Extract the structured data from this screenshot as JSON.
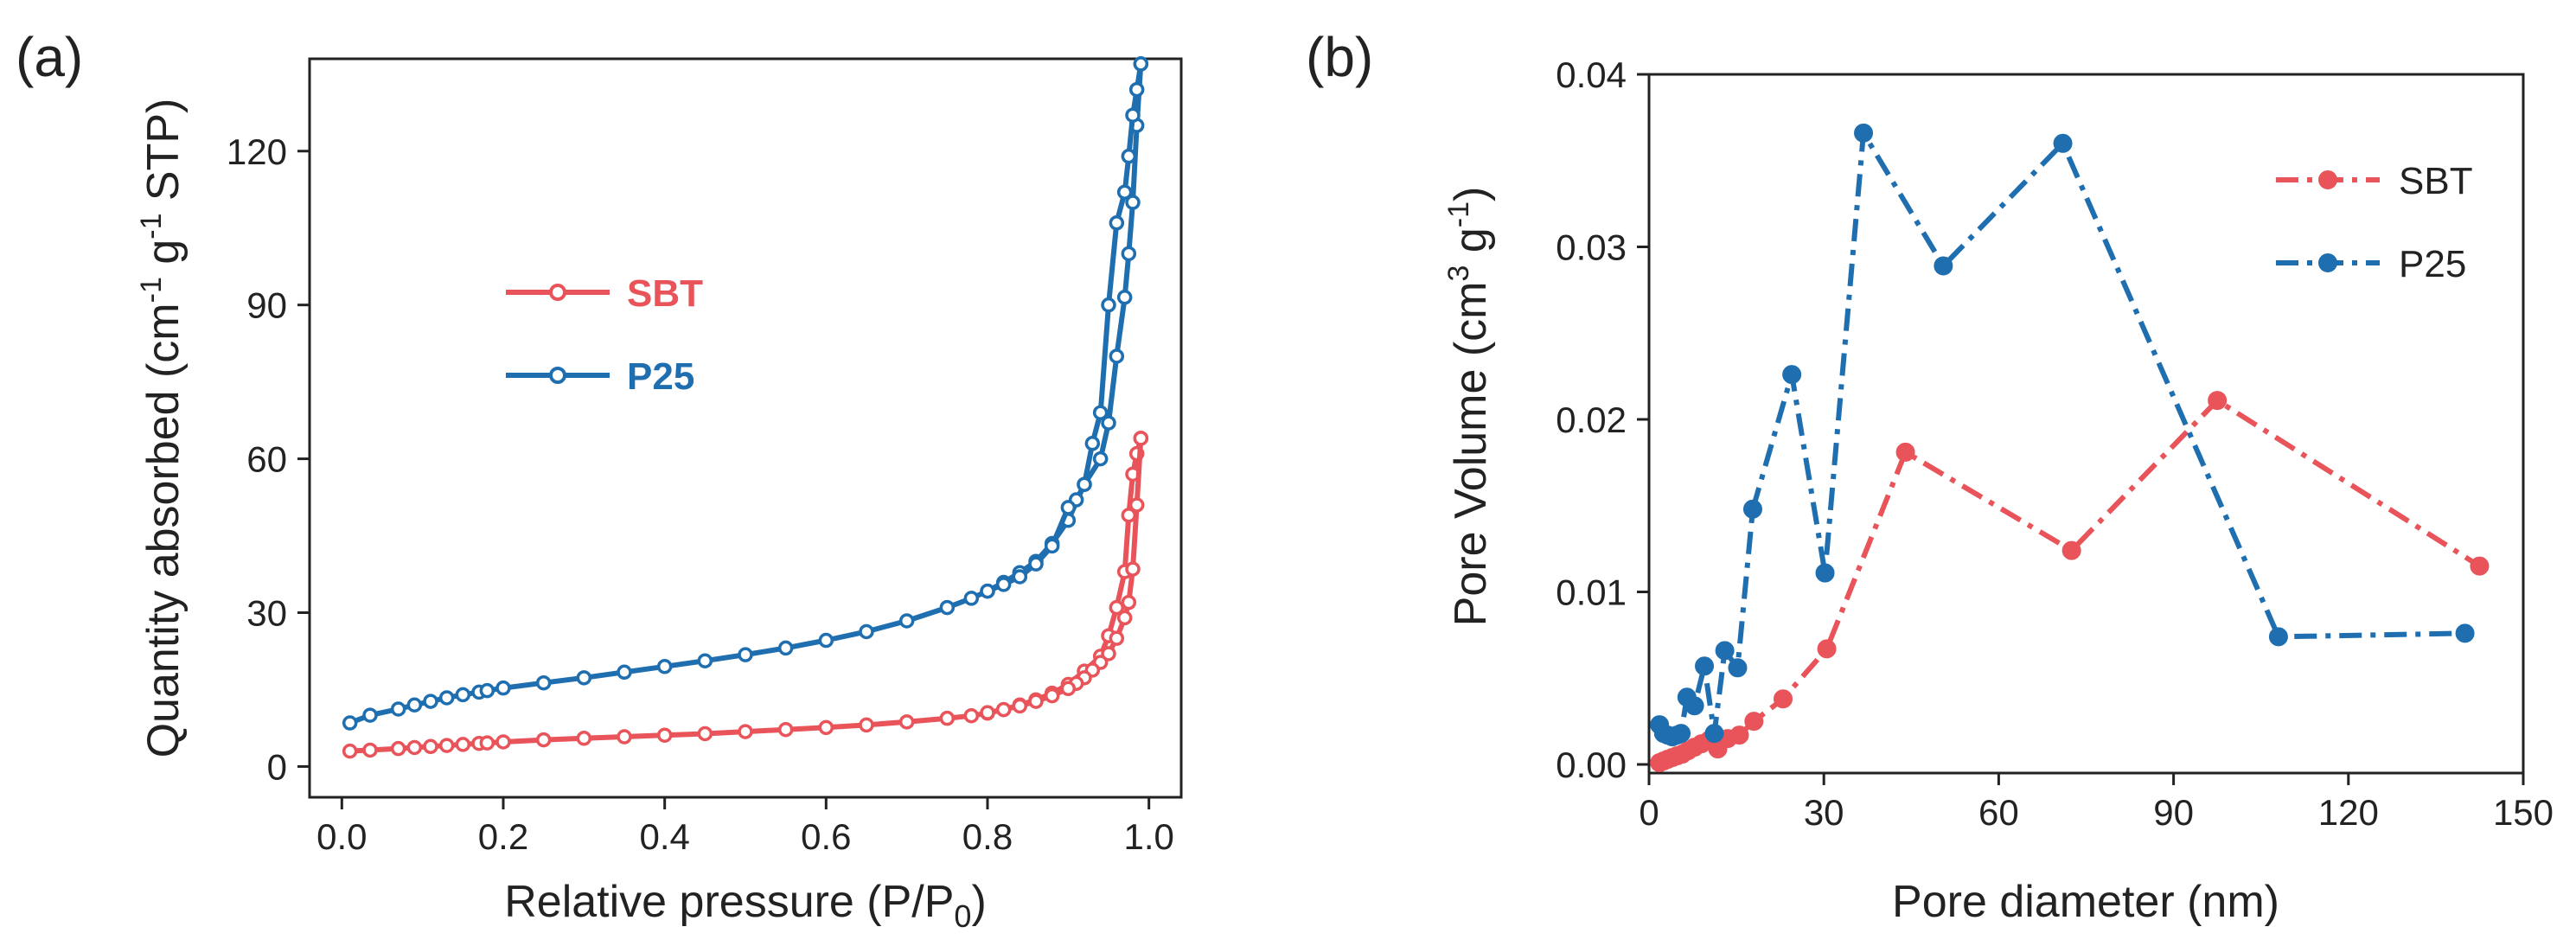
{
  "chart_data": [
    {
      "type": "line",
      "panel_label": "(a)",
      "title": "",
      "xlabel_main": "Relative pressure (P/P",
      "xlabel_sub": "0",
      "xlabel_end": ")",
      "ylabel_parts": [
        "Quantity absorbed (cm",
        "-1",
        " g",
        "-1",
        " STP)"
      ],
      "xlim": [
        -0.04,
        1.04
      ],
      "ylim": [
        -6,
        138
      ],
      "xticks": [
        0.0,
        0.2,
        0.4,
        0.6,
        0.8,
        1.0
      ],
      "xtick_labels": [
        "0.0",
        "0.2",
        "0.4",
        "0.6",
        "0.8",
        "1.0"
      ],
      "yticks": [
        0,
        30,
        60,
        90,
        120
      ],
      "ytick_labels": [
        "0",
        "30",
        "60",
        "90",
        "120"
      ],
      "legend_position": "center-left",
      "series": [
        {
          "name": "SBT",
          "color": "#e8545a",
          "adsorption": {
            "x": [
              0.01,
              0.035,
              0.07,
              0.09,
              0.11,
              0.13,
              0.15,
              0.17,
              0.18,
              0.2,
              0.25,
              0.3,
              0.35,
              0.4,
              0.45,
              0.5,
              0.55,
              0.6,
              0.65,
              0.7,
              0.75,
              0.78,
              0.8,
              0.82,
              0.84,
              0.86,
              0.88,
              0.9,
              0.92,
              0.94,
              0.95,
              0.96,
              0.97,
              0.975,
              0.98,
              0.985,
              0.99
            ],
            "y": [
              3.0,
              3.2,
              3.5,
              3.7,
              3.9,
              4.1,
              4.3,
              4.5,
              4.6,
              4.8,
              5.2,
              5.5,
              5.8,
              6.1,
              6.4,
              6.8,
              7.2,
              7.6,
              8.1,
              8.7,
              9.4,
              9.9,
              10.4,
              11.1,
              12.0,
              13.0,
              14.3,
              16.0,
              18.6,
              21.5,
              25.5,
              31.0,
              38.0,
              49.0,
              57.0,
              61.0,
              64.0
            ]
          },
          "desorption": {
            "x": [
              0.99,
              0.985,
              0.98,
              0.975,
              0.97,
              0.96,
              0.95,
              0.94,
              0.93,
              0.92,
              0.91,
              0.9,
              0.88,
              0.86,
              0.84,
              0.82,
              0.8
            ],
            "y": [
              64.0,
              51.0,
              38.5,
              32.0,
              29.0,
              25.0,
              22.0,
              20.3,
              18.8,
              17.3,
              16.2,
              15.2,
              13.8,
              12.7,
              11.8,
              11.1,
              10.5
            ]
          }
        },
        {
          "name": "P25",
          "color": "#1f6fb0",
          "adsorption": {
            "x": [
              0.01,
              0.035,
              0.07,
              0.09,
              0.11,
              0.13,
              0.15,
              0.17,
              0.18,
              0.2,
              0.25,
              0.3,
              0.35,
              0.4,
              0.45,
              0.5,
              0.55,
              0.6,
              0.65,
              0.7,
              0.75,
              0.78,
              0.8,
              0.82,
              0.84,
              0.86,
              0.88,
              0.9,
              0.92,
              0.94,
              0.95,
              0.96,
              0.97,
              0.975,
              0.98,
              0.985,
              0.99
            ],
            "y": [
              8.5,
              10.0,
              11.2,
              12.0,
              12.7,
              13.4,
              14.0,
              14.5,
              14.8,
              15.3,
              16.3,
              17.3,
              18.4,
              19.5,
              20.6,
              21.8,
              23.1,
              24.6,
              26.3,
              28.4,
              31.0,
              32.8,
              34.2,
              35.9,
              37.8,
              40.0,
              43.5,
              48.0,
              55.0,
              60.0,
              67.0,
              80.0,
              91.5,
              100.0,
              110.0,
              125.0,
              137.0
            ]
          },
          "desorption": {
            "x": [
              0.99,
              0.985,
              0.98,
              0.975,
              0.97,
              0.96,
              0.95,
              0.94,
              0.93,
              0.92,
              0.91,
              0.9,
              0.88,
              0.86,
              0.84,
              0.82,
              0.8
            ],
            "y": [
              137.0,
              132.0,
              127.0,
              119.0,
              112.0,
              106.0,
              90.0,
              69.0,
              63.0,
              55.0,
              52.0,
              50.5,
              43.0,
              39.5,
              37.0,
              35.5,
              34.2
            ]
          }
        }
      ]
    },
    {
      "type": "line",
      "panel_label": "(b)",
      "title": "",
      "xlabel": "Pore diameter (nm)",
      "ylabel_parts": [
        "Pore Volume (cm",
        "3",
        " g",
        "-1",
        ")"
      ],
      "xlim": [
        0,
        150
      ],
      "ylim": [
        -0.0005,
        0.04
      ],
      "xticks": [
        0,
        30,
        60,
        90,
        120,
        150
      ],
      "xtick_labels": [
        "0",
        "30",
        "60",
        "90",
        "120",
        "150"
      ],
      "yticks": [
        0.0,
        0.01,
        0.02,
        0.03,
        0.04
      ],
      "ytick_labels": [
        "0.00",
        "0.01",
        "0.02",
        "0.03",
        "0.04"
      ],
      "legend_position": "top-right",
      "series": [
        {
          "name": "SBT",
          "color": "#e8545a",
          "line_style": "dash-dot",
          "x": [
            1.8,
            2.5,
            3.2,
            4.0,
            4.8,
            5.7,
            6.7,
            7.8,
            9.0,
            10.3,
            11.8,
            13.5,
            15.5,
            18.0,
            23.0,
            30.5,
            44.0,
            72.5,
            97.5,
            142.5
          ],
          "y": [
            0.0001,
            0.0002,
            0.0003,
            0.0004,
            0.0005,
            0.0006,
            0.0008,
            0.001,
            0.0012,
            0.0014,
            0.0009,
            0.0015,
            0.0017,
            0.0025,
            0.0038,
            0.0067,
            0.0181,
            0.0124,
            0.0211,
            0.0115
          ]
        },
        {
          "name": "P25",
          "color": "#1f6fb0",
          "line_style": "dash-dot",
          "x": [
            1.8,
            2.5,
            3.2,
            4.0,
            4.8,
            5.5,
            6.5,
            7.8,
            9.5,
            11.2,
            13.0,
            15.2,
            17.8,
            24.5,
            30.2,
            36.8,
            50.5,
            71.0,
            108.0,
            140.0
          ],
          "y": [
            0.0023,
            0.0018,
            0.0017,
            0.0016,
            0.0017,
            0.0018,
            0.0039,
            0.0034,
            0.0057,
            0.0018,
            0.0066,
            0.0056,
            0.0148,
            0.0226,
            0.0111,
            0.0366,
            0.0289,
            0.036,
            0.0074,
            0.0076
          ]
        }
      ]
    }
  ]
}
